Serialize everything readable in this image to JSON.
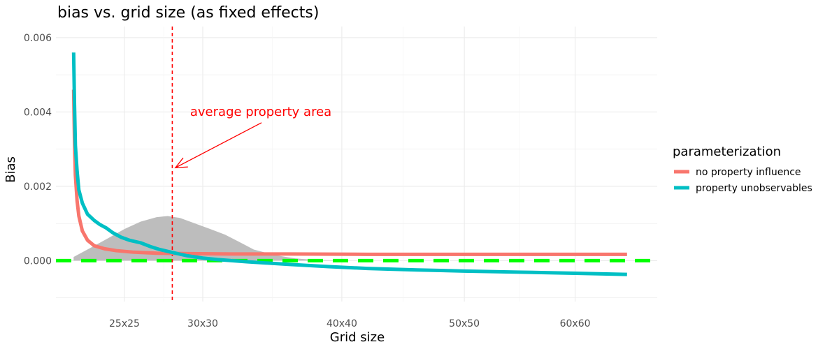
{
  "chart_data": {
    "type": "line",
    "title": "bias vs. grid size (as fixed effects)",
    "xlabel": "Grid size",
    "ylabel": "Bias",
    "x_scale": "sqrt",
    "xlim": [
      21,
      68
    ],
    "ylim": [
      -0.0011,
      0.0063
    ],
    "x_ticks": [
      {
        "value": 25,
        "label": "25x25"
      },
      {
        "value": 30,
        "label": "30x30"
      },
      {
        "value": 40,
        "label": "40x40"
      },
      {
        "value": 50,
        "label": "50x50"
      },
      {
        "value": 60,
        "label": "60x60"
      }
    ],
    "y_ticks": [
      {
        "value": 0.0,
        "label": "0.000"
      },
      {
        "value": 0.002,
        "label": "0.002"
      },
      {
        "value": 0.004,
        "label": "0.004"
      },
      {
        "value": 0.006,
        "label": "0.006"
      }
    ],
    "grid": true,
    "legend": {
      "title": "parameterization",
      "position": "right"
    },
    "series": [
      {
        "name": "no property influence",
        "color": "#F8766D",
        "x": [
          22,
          22.05,
          22.1,
          22.2,
          22.3,
          22.5,
          22.8,
          23.2,
          23.8,
          24.5,
          25.5,
          27,
          29,
          32,
          36,
          42,
          50,
          58,
          65
        ],
        "y": [
          0.0046,
          0.0032,
          0.0023,
          0.0016,
          0.0012,
          0.0008,
          0.00055,
          0.0004,
          0.00032,
          0.00027,
          0.00023,
          0.0002,
          0.00019,
          0.00018,
          0.00018,
          0.00017,
          0.00017,
          0.00017,
          0.00017
        ]
      },
      {
        "name": "property unobservables",
        "color": "#00BFC4",
        "x": [
          22,
          22.05,
          22.1,
          22.2,
          22.3,
          22.5,
          22.8,
          23.2,
          23.5,
          23.9,
          24.3,
          24.8,
          25.3,
          26,
          26.6,
          27.2,
          28,
          29,
          30,
          31,
          33,
          36,
          39,
          42,
          46,
          50,
          55,
          60,
          65
        ],
        "y": [
          0.0056,
          0.0042,
          0.0031,
          0.0024,
          0.0019,
          0.00155,
          0.00125,
          0.00108,
          0.00098,
          0.00088,
          0.00075,
          0.00063,
          0.00055,
          0.00048,
          0.00038,
          0.0003,
          0.00022,
          0.00013,
          7e-05,
          3e-05,
          -3e-05,
          -0.0001,
          -0.00016,
          -0.00021,
          -0.00025,
          -0.00028,
          -0.00031,
          -0.00034,
          -0.00037
        ]
      }
    ],
    "density": {
      "name": "grid size density",
      "color": "#bdbdbd",
      "x": [
        22,
        23,
        24,
        25,
        26,
        27,
        27.7,
        28.5,
        29.5,
        30.5,
        31.5,
        32.5,
        33.5,
        35,
        36.5,
        38,
        40
      ],
      "y": [
        0.0001,
        0.00035,
        0.0006,
        0.00085,
        0.00105,
        0.00117,
        0.0012,
        0.00115,
        0.001,
        0.00085,
        0.0007,
        0.0005,
        0.0003,
        0.00015,
        6e-05,
        2e-05,
        0.0
      ]
    },
    "reference_lines": [
      {
        "orientation": "horizontal",
        "value": 0.0,
        "color": "#00FF00",
        "style": "dashed"
      },
      {
        "orientation": "vertical",
        "value": 28,
        "color": "#FF0000",
        "style": "dotted"
      }
    ],
    "annotation": {
      "text": "average property area",
      "color": "#FF0000",
      "text_at": {
        "x": 34,
        "y": 0.0039
      },
      "arrow_to": {
        "x": 28.2,
        "y": 0.0025
      }
    }
  }
}
